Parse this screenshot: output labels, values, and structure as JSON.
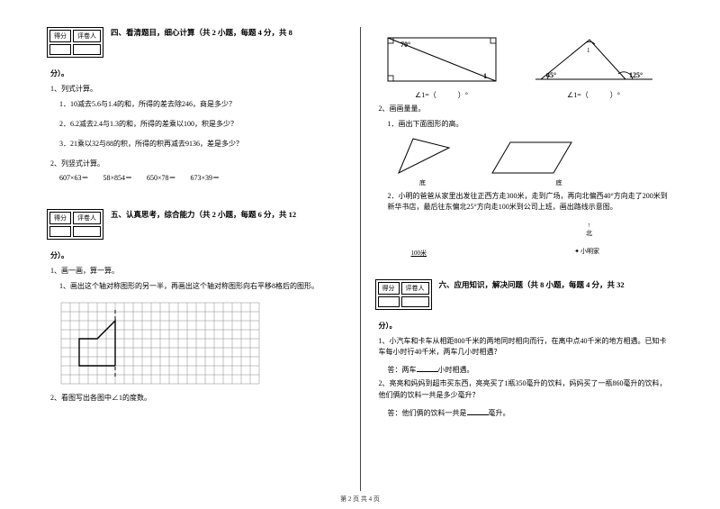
{
  "footer": "第 2 页 共 4 页",
  "score": {
    "h1": "得分",
    "h2": "评卷人"
  },
  "left": {
    "sec4": {
      "title": "四、看清题目，细心计算（共 2 小题，每题 4 分，共 8",
      "title_tail": "分）。",
      "q1": "1、列式计算。",
      "q1_1": "1．10减去5.6与1.4的和，所得的差去除246，商是多少？",
      "q1_2": "2．6.2减去2.4与1.3的和，所得的差乘以100，积是多少？",
      "q1_3": "3．21乘以32与88的积，所得的积再减去9136，差是多少？",
      "q2": "2、列竖式计算。",
      "calc": "607×63＝　　58×854＝　　650×78＝　　673×39＝"
    },
    "sec5": {
      "title": "五、认真思考，综合能力（共 2 小题，每题 6 分，共 12",
      "title_tail": "分）。",
      "q1": "1、画一画，算一算。",
      "q1_1": "1、画出这个轴对称图形的另一半，再画出这个轴对称图形向右平移8格后的图形。",
      "q2": "2、看图写出各图中∠1的度数。"
    },
    "grid": {
      "cols": 22,
      "rows": 9,
      "cell": 10,
      "stroke": "#888",
      "shape_stroke": "#000",
      "dash_stroke": "#000"
    }
  },
  "right": {
    "rect_angle": {
      "top": "70°",
      "br": "1",
      "ans_prefix": "∠1=（",
      "ans_suffix": "）°"
    },
    "tri_angle": {
      "apex": "1",
      "left": "45°",
      "right": "125°",
      "ans_prefix": "∠1=（",
      "ans_suffix": "）°"
    },
    "q2": "2、画画量量。",
    "q2_1": "1．画出下面图形的高。",
    "shape_lbl": {
      "tri": "底",
      "para": "底"
    },
    "q2_2": "2．小明的爸爸从家里出发往正西方走300米，走到广场，再向北偏西40°方向走了200米到新华书店，最后往东偏北25°方向走100米到公司上班，画出路线示意图。",
    "map": {
      "north": "北",
      "scale": "100米",
      "home": "小明家"
    },
    "sec6": {
      "title": "六、应用知识，解决问题（共 8 小题，每题 4 分，共 32",
      "title_tail": "分）。",
      "q1": "1、小汽车和卡车从相距800千米的两地同时相向而行，在离中点40千米的地方相遇。已知卡车每小时行40千米，两车几小时相遇？",
      "a1_pre": "答：两车",
      "a1_post": "小时相遇。",
      "q2": "2、亮亮和妈妈到超市买东西，亮亮买了1瓶350毫升的饮料，妈妈买了一瓶860毫升的饮料，他们俩的饮料一共是多少毫升？",
      "a2_pre": "答：他们俩的饮料一共是",
      "a2_post": "毫升。"
    }
  }
}
